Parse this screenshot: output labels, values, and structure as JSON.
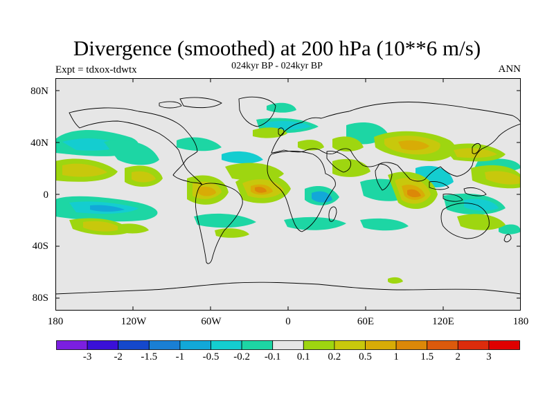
{
  "map": {
    "title": "Divergence (smoothed) at 200 hPa (10**6 m/s)",
    "subtitle": "024kyr BP - 024kyr BP",
    "experiment": "Expt = tdxox-tdwtx",
    "season": "ANN",
    "lat_labels": [
      "80N",
      "40N",
      "0",
      "40S",
      "80S"
    ],
    "lon_labels": [
      "180",
      "120W",
      "60W",
      "0",
      "60E",
      "120E",
      "180"
    ],
    "background_color": "#e6e6e6"
  },
  "colorbar": {
    "labels": [
      "-3",
      "-2",
      "-1.5",
      "-1",
      "-0.5",
      "-0.2",
      "-0.1",
      "0.1",
      "0.2",
      "0.5",
      "1",
      "1.5",
      "2",
      "3"
    ],
    "colors": [
      "#7b1fe0",
      "#3a10d8",
      "#1548cc",
      "#1a7fd4",
      "#12a8d8",
      "#14cdd0",
      "#1dd6a4",
      "#e6e6e6",
      "#9ed610",
      "#c8c80c",
      "#d8ac06",
      "#dc8808",
      "#dc5a0c",
      "#dc2c0c",
      "#e00000"
    ]
  }
}
